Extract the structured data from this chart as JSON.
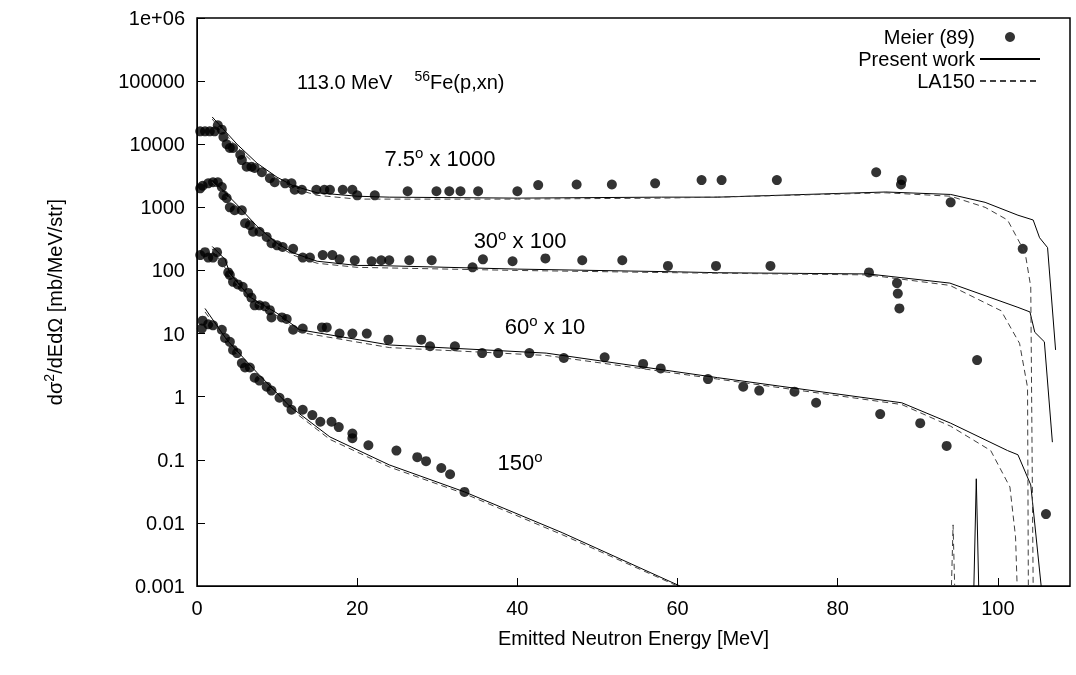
{
  "chart_data": {
    "type": "line",
    "title": "113.0 MeV    $^{56}$Fe(p,xn)",
    "xlabel": "Emitted Neutron Energy [MeV]",
    "ylabel": "dσ$^{2}$/dEdΩ [mb/MeV/str]",
    "log": "y",
    "legend": "top right",
    "xlim": [
      0,
      109
    ],
    "xticks": [
      0,
      20,
      40,
      60,
      80,
      100
    ],
    "ylim": [
      0.001,
      1000000
    ],
    "yticks": [
      0.001,
      0.01,
      0.1,
      1,
      10,
      100,
      1000,
      10000,
      100000,
      {
        "value": 1000000,
        "label": "1e+06"
      }
    ],
    "annotations": [
      "7.5$^{o}$ x 1000",
      "30$^{o}$ x 100",
      "60$^{o}$ x 10",
      "150$^{o}$"
    ],
    "series": [
      {
        "name": "Meier (89)",
        "type": "scatter",
        "marker": "circle",
        "color": "#000000",
        "x": [
          0.4,
          1.0,
          1.6,
          2.2,
          2.6,
          3.1,
          3.3,
          3.7,
          4.1,
          4.5,
          5.4,
          5.6,
          6.2,
          6.8,
          7.2,
          8.1,
          9.1,
          9.7,
          11.0,
          11.8,
          12.2,
          13.1,
          14.9,
          15.9,
          16.6,
          18.2,
          19.4,
          20.0,
          22.2,
          26.3,
          29.9,
          31.5,
          32.9,
          35.1,
          40.0,
          42.6,
          47.4,
          51.8,
          57.2,
          63.0,
          65.5,
          72.4,
          84.8,
          88.0,
          87.9,
          94.1,
          103.1,
          0.4,
          0.7,
          1.4,
          2.0,
          2.6,
          3.1,
          3.3,
          3.7,
          4.1,
          4.7,
          5.6,
          6.0,
          6.6,
          7.0,
          7.8,
          8.7,
          9.3,
          10.0,
          10.7,
          12.0,
          13.2,
          14.1,
          15.7,
          16.9,
          17.8,
          19.7,
          21.8,
          23.0,
          24.0,
          26.5,
          29.3,
          34.4,
          35.7,
          39.4,
          43.5,
          48.1,
          53.1,
          58.8,
          64.8,
          71.6,
          83.9,
          87.4,
          87.5,
          87.7,
          97.4,
          0.4,
          1.0,
          1.4,
          2.0,
          2.5,
          3.2,
          3.9,
          4.1,
          4.5,
          5.1,
          5.7,
          6.4,
          6.8,
          7.2,
          7.8,
          8.5,
          9.1,
          9.3,
          10.6,
          11.2,
          12.0,
          13.2,
          15.6,
          16.2,
          17.8,
          19.4,
          21.2,
          23.9,
          28.0,
          29.1,
          32.2,
          35.6,
          37.6,
          41.5,
          45.8,
          50.9,
          55.7,
          57.9,
          63.8,
          68.2,
          70.2,
          74.6,
          77.3,
          85.3,
          90.3,
          93.6,
          106.0,
          0.6,
          0.7,
          1.4,
          2.0,
          3.1,
          3.5,
          4.1,
          4.5,
          5.0,
          5.6,
          6.0,
          6.6,
          7.2,
          7.8,
          8.7,
          9.3,
          10.3,
          11.3,
          11.8,
          13.2,
          14.4,
          15.4,
          16.8,
          17.7,
          19.4,
          19.4,
          21.4,
          24.9,
          27.5,
          28.6,
          30.5,
          31.6,
          33.4
        ],
        "values": [
          16000,
          16000,
          16000,
          16000,
          20000,
          17000,
          13000,
          10000,
          8700,
          8700,
          6800,
          5600,
          4400,
          4400,
          4200,
          3600,
          2900,
          2500,
          2400,
          2400,
          1900,
          1900,
          1900,
          1900,
          1900,
          1900,
          1900,
          1550,
          1550,
          1800,
          1800,
          1800,
          1800,
          1800,
          1800,
          2250,
          2300,
          2300,
          2400,
          2700,
          2700,
          2700,
          3600,
          2700,
          2300,
          1200,
          220,
          2000,
          2200,
          2400,
          2500,
          2500,
          2100,
          1550,
          1400,
          1000,
          900,
          900,
          560,
          520,
          410,
          410,
          340,
          270,
          250,
          235,
          220,
          160,
          160,
          175,
          175,
          150,
          145,
          140,
          145,
          145,
          145,
          145,
          112,
          150,
          140,
          155,
          145,
          145,
          118,
          118,
          118,
          93,
          63,
          43,
          25,
          3.8,
          175,
          195,
          160,
          160,
          195,
          135,
          93,
          85,
          66,
          60,
          55,
          44,
          37,
          28,
          28,
          27,
          23.5,
          18,
          18,
          17,
          11.5,
          12,
          12.5,
          12.5,
          10,
          10,
          10,
          8,
          8,
          6.3,
          6.3,
          4.9,
          4.9,
          4.9,
          4.1,
          4.2,
          3.3,
          2.8,
          1.9,
          1.44,
          1.25,
          1.2,
          0.8,
          0.53,
          0.38,
          0.166,
          0.0138,
          12,
          16,
          14,
          13.5,
          11.5,
          8.5,
          7.4,
          5.5,
          4.9,
          3.4,
          2.9,
          2.9,
          2.0,
          1.8,
          1.44,
          1.25,
          0.96,
          0.8,
          0.62,
          0.62,
          0.51,
          0.4,
          0.4,
          0.33,
          0.26,
          0.22,
          0.17,
          0.14,
          0.11,
          0.095,
          0.074,
          0.059,
          0.031
        ]
      },
      {
        "name": "Present work",
        "line_style": "solid",
        "color": "#000000",
        "x": [
          1.9,
          3,
          5,
          7.5,
          10,
          12,
          15,
          20,
          24,
          40,
          58,
          65,
          86,
          94.1,
          98.4,
          102.5,
          104.4,
          105.2,
          106.2,
          107.2
        ],
        "values": [
          27000,
          19000,
          10000,
          5000,
          3000,
          2200,
          1700,
          1500,
          1450,
          1400,
          1450,
          1450,
          1750,
          1600,
          1200,
          750,
          630,
          330,
          230,
          5.5
        ]
      },
      {
        "line_style": "solid",
        "color": "#000000",
        "x": [
          1.9,
          3,
          5,
          7.5,
          10,
          12,
          15,
          20,
          22,
          40,
          60,
          65,
          83.8,
          94,
          102.5,
          104,
          104.6,
          105.8,
          106.8
        ],
        "values": [
          2700,
          2000,
          1100,
          500,
          270,
          190,
          140,
          120,
          120,
          105,
          95,
          92,
          88,
          63,
          26,
          22,
          10.5,
          7.4,
          0.19
        ]
      },
      {
        "line_style": "solid",
        "color": "#000000",
        "x": [
          1.9,
          3.5,
          4.1,
          6.6,
          10,
          12.8,
          24,
          43.6,
          65,
          88,
          94.1,
          101.2,
          102.5,
          104.1,
          105.4
        ],
        "values": [
          240,
          150,
          90,
          38,
          21,
          11.5,
          6.6,
          4.9,
          2,
          0.8,
          0.38,
          0.14,
          0.12,
          0.04,
          0.001
        ]
      },
      {
        "line_style": "solid",
        "color": "#000000",
        "x": [
          1.0,
          3.7,
          7.5,
          11.6,
          16.6,
          24,
          33.4,
          45.6,
          60.3
        ],
        "values": [
          25,
          8,
          2.4,
          0.7,
          0.23,
          0.083,
          0.031,
          0.007,
          0.001
        ]
      },
      {
        "line_style": "solid",
        "color": "#000000",
        "x": [
          97.0,
          97.3,
          97.6
        ],
        "values": [
          0.001,
          0.05,
          0.001
        ]
      },
      {
        "name": "LA150",
        "line_style": "dashed",
        "color": "#404040",
        "x": [
          1.9,
          3,
          5,
          7.5,
          10,
          12,
          15,
          20,
          40,
          58,
          65,
          86,
          94.1,
          98.4,
          101.2,
          103.4,
          104.1,
          104.4
        ],
        "values": [
          25000,
          17000,
          9000,
          4500,
          2700,
          2000,
          1550,
          1350,
          1350,
          1400,
          1450,
          1700,
          1500,
          1000,
          630,
          190,
          55,
          0.001
        ]
      },
      {
        "line_style": "dashed",
        "color": "#404040",
        "x": [
          1.9,
          3,
          5,
          7.5,
          10,
          12,
          15,
          20,
          40,
          60,
          83.8,
          94,
          100.4,
          102.7,
          103.7,
          103.8
        ],
        "values": [
          2500,
          1800,
          1000,
          460,
          250,
          175,
          130,
          112,
          100,
          92,
          85,
          58,
          23,
          7,
          1.4,
          0.001
        ]
      },
      {
        "line_style": "dashed",
        "color": "#404040",
        "x": [
          1.9,
          4.1,
          6.6,
          10,
          12.8,
          24,
          43.6,
          65,
          88,
          94.1,
          99.1,
          101.5,
          102.2,
          102.4
        ],
        "values": [
          220,
          85,
          35,
          19,
          10.5,
          6,
          4.5,
          1.9,
          0.75,
          0.34,
          0.14,
          0.037,
          0.006,
          0.001
        ]
      },
      {
        "line_style": "dashed",
        "color": "#404040",
        "x": [
          1.0,
          3.7,
          7.5,
          11.6,
          16.6,
          24,
          33.4,
          45.6,
          60.0
        ],
        "values": [
          22,
          7.5,
          2.2,
          0.65,
          0.21,
          0.077,
          0.029,
          0.0065,
          0.001
        ]
      },
      {
        "line_style": "dashed",
        "color": "#404040",
        "x": [
          94.2,
          94.4,
          94.6
        ],
        "values": [
          0.001,
          0.0093,
          0.001
        ]
      }
    ]
  }
}
